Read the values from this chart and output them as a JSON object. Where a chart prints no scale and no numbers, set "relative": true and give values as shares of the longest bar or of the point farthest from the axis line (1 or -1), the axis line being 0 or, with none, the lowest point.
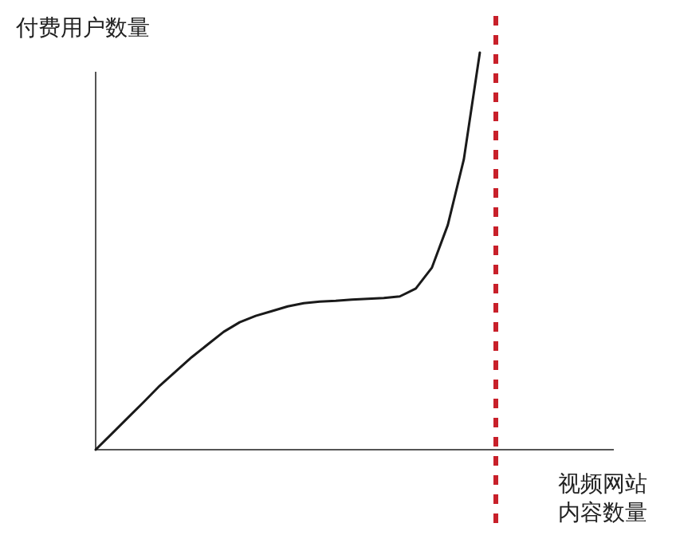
{
  "chart_data": {
    "type": "line",
    "relative": true,
    "ylabel": "付费用户数量",
    "xlabel": "视频网站内容数量",
    "categories": [
      null,
      null,
      null,
      null,
      null,
      null,
      null,
      null,
      null,
      null,
      null,
      null,
      null,
      null,
      null,
      null,
      null,
      null,
      null,
      null,
      null,
      null,
      null,
      null,
      null
    ],
    "series": [
      {
        "color": "#1a1a1a",
        "values": [
          0,
          0.04,
          0.08,
          0.12,
          0.161,
          0.197,
          0.233,
          0.265,
          0.297,
          0.321,
          0.337,
          0.349,
          0.361,
          0.369,
          0.373,
          0.375,
          0.378,
          0.38,
          0.382,
          0.386,
          0.406,
          0.458,
          0.566,
          0.731,
          1.0
        ]
      }
    ],
    "marker": "none"
  }
}
